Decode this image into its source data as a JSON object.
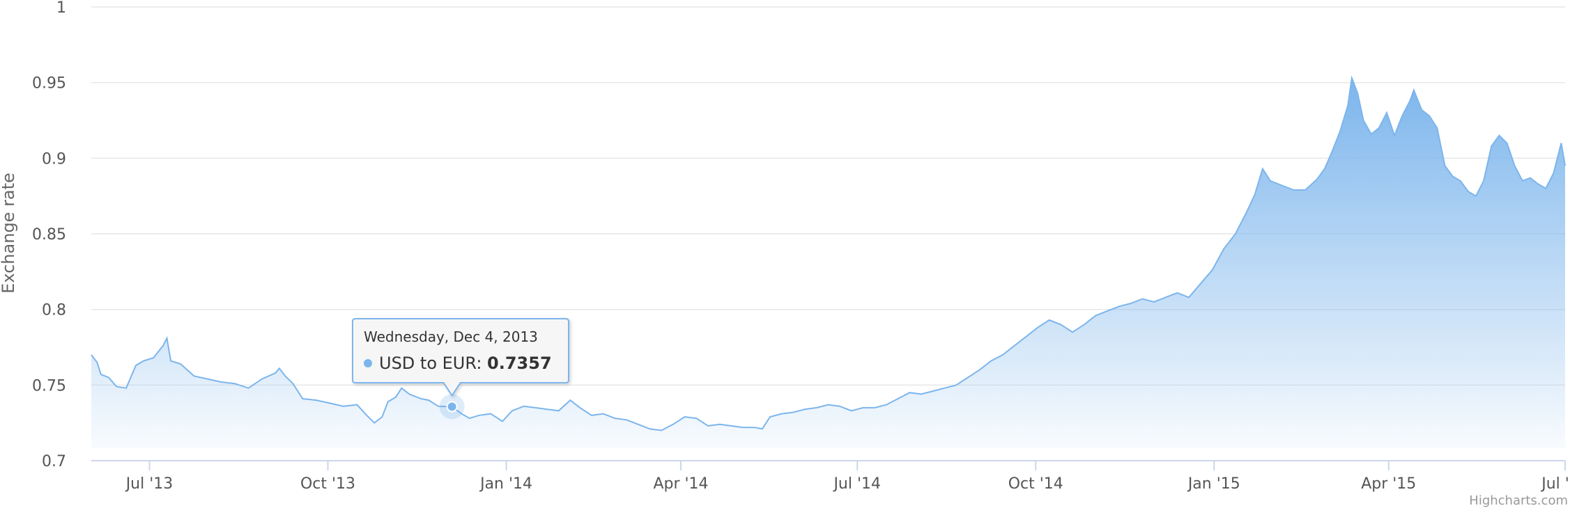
{
  "chart_data": {
    "type": "area",
    "title": "",
    "ylabel": "Exchange rate",
    "xlabel": "",
    "ylim": [
      0.7,
      1
    ],
    "yticks": [
      "0.7",
      "0.75",
      "0.8",
      "0.85",
      "0.9",
      "0.95",
      "1"
    ],
    "xticks": [
      {
        "date": "2013-07-01",
        "label": "Jul '13"
      },
      {
        "date": "2013-10-01",
        "label": "Oct '13"
      },
      {
        "date": "2014-01-01",
        "label": "Jan '14"
      },
      {
        "date": "2014-04-01",
        "label": "Apr '14"
      },
      {
        "date": "2014-07-01",
        "label": "Jul '14"
      },
      {
        "date": "2014-10-01",
        "label": "Oct '14"
      },
      {
        "date": "2015-01-01",
        "label": "Jan '15"
      },
      {
        "date": "2015-04-01",
        "label": "Apr '15"
      },
      {
        "date": "2015-07-01",
        "label": "Jul '15"
      }
    ],
    "grid": true,
    "legend": "none",
    "series": [
      {
        "name": "USD to EUR",
        "color": "#7cb5ec",
        "points": [
          [
            "2013-06-01",
            0.77
          ],
          [
            "2013-06-04",
            0.765
          ],
          [
            "2013-06-06",
            0.757
          ],
          [
            "2013-06-10",
            0.755
          ],
          [
            "2013-06-14",
            0.749
          ],
          [
            "2013-06-19",
            0.748
          ],
          [
            "2013-06-24",
            0.763
          ],
          [
            "2013-06-28",
            0.766
          ],
          [
            "2013-07-03",
            0.768
          ],
          [
            "2013-07-08",
            0.776
          ],
          [
            "2013-07-10",
            0.781
          ],
          [
            "2013-07-12",
            0.766
          ],
          [
            "2013-07-17",
            0.764
          ],
          [
            "2013-07-24",
            0.756
          ],
          [
            "2013-07-31",
            0.754
          ],
          [
            "2013-08-07",
            0.752
          ],
          [
            "2013-08-14",
            0.751
          ],
          [
            "2013-08-21",
            0.748
          ],
          [
            "2013-08-28",
            0.754
          ],
          [
            "2013-09-04",
            0.758
          ],
          [
            "2013-09-06",
            0.761
          ],
          [
            "2013-09-09",
            0.756
          ],
          [
            "2013-09-13",
            0.751
          ],
          [
            "2013-09-18",
            0.741
          ],
          [
            "2013-09-25",
            0.74
          ],
          [
            "2013-10-02",
            0.738
          ],
          [
            "2013-10-09",
            0.736
          ],
          [
            "2013-10-16",
            0.737
          ],
          [
            "2013-10-21",
            0.73
          ],
          [
            "2013-10-25",
            0.725
          ],
          [
            "2013-10-29",
            0.729
          ],
          [
            "2013-11-01",
            0.739
          ],
          [
            "2013-11-05",
            0.742
          ],
          [
            "2013-11-08",
            0.748
          ],
          [
            "2013-11-12",
            0.744
          ],
          [
            "2013-11-18",
            0.741
          ],
          [
            "2013-11-22",
            0.74
          ],
          [
            "2013-11-27",
            0.736
          ],
          [
            "2013-12-04",
            0.7357
          ],
          [
            "2013-12-09",
            0.731
          ],
          [
            "2013-12-13",
            0.728
          ],
          [
            "2013-12-18",
            0.73
          ],
          [
            "2013-12-24",
            0.731
          ],
          [
            "2013-12-30",
            0.726
          ],
          [
            "2014-01-04",
            0.733
          ],
          [
            "2014-01-10",
            0.736
          ],
          [
            "2014-01-16",
            0.735
          ],
          [
            "2014-01-22",
            0.734
          ],
          [
            "2014-01-28",
            0.733
          ],
          [
            "2014-02-03",
            0.74
          ],
          [
            "2014-02-08",
            0.735
          ],
          [
            "2014-02-14",
            0.73
          ],
          [
            "2014-02-20",
            0.731
          ],
          [
            "2014-02-26",
            0.728
          ],
          [
            "2014-03-04",
            0.727
          ],
          [
            "2014-03-10",
            0.724
          ],
          [
            "2014-03-16",
            0.721
          ],
          [
            "2014-03-22",
            0.72
          ],
          [
            "2014-03-28",
            0.724
          ],
          [
            "2014-04-03",
            0.729
          ],
          [
            "2014-04-09",
            0.728
          ],
          [
            "2014-04-15",
            0.723
          ],
          [
            "2014-04-21",
            0.724
          ],
          [
            "2014-04-27",
            0.723
          ],
          [
            "2014-05-03",
            0.722
          ],
          [
            "2014-05-09",
            0.722
          ],
          [
            "2014-05-13",
            0.721
          ],
          [
            "2014-05-17",
            0.729
          ],
          [
            "2014-05-23",
            0.731
          ],
          [
            "2014-05-29",
            0.732
          ],
          [
            "2014-06-04",
            0.734
          ],
          [
            "2014-06-10",
            0.735
          ],
          [
            "2014-06-16",
            0.737
          ],
          [
            "2014-06-22",
            0.736
          ],
          [
            "2014-06-28",
            0.733
          ],
          [
            "2014-07-04",
            0.735
          ],
          [
            "2014-07-10",
            0.735
          ],
          [
            "2014-07-16",
            0.737
          ],
          [
            "2014-07-22",
            0.741
          ],
          [
            "2014-07-28",
            0.745
          ],
          [
            "2014-08-03",
            0.744
          ],
          [
            "2014-08-09",
            0.746
          ],
          [
            "2014-08-15",
            0.748
          ],
          [
            "2014-08-21",
            0.75
          ],
          [
            "2014-08-27",
            0.755
          ],
          [
            "2014-09-02",
            0.76
          ],
          [
            "2014-09-08",
            0.766
          ],
          [
            "2014-09-14",
            0.77
          ],
          [
            "2014-09-20",
            0.776
          ],
          [
            "2014-09-26",
            0.782
          ],
          [
            "2014-10-02",
            0.788
          ],
          [
            "2014-10-08",
            0.793
          ],
          [
            "2014-10-14",
            0.79
          ],
          [
            "2014-10-20",
            0.785
          ],
          [
            "2014-10-26",
            0.79
          ],
          [
            "2014-11-01",
            0.796
          ],
          [
            "2014-11-07",
            0.799
          ],
          [
            "2014-11-13",
            0.802
          ],
          [
            "2014-11-19",
            0.804
          ],
          [
            "2014-11-25",
            0.807
          ],
          [
            "2014-12-01",
            0.805
          ],
          [
            "2014-12-07",
            0.808
          ],
          [
            "2014-12-13",
            0.811
          ],
          [
            "2014-12-19",
            0.808
          ],
          [
            "2014-12-25",
            0.817
          ],
          [
            "2014-12-31",
            0.826
          ],
          [
            "2015-01-06",
            0.84
          ],
          [
            "2015-01-12",
            0.85
          ],
          [
            "2015-01-18",
            0.865
          ],
          [
            "2015-01-22",
            0.876
          ],
          [
            "2015-01-26",
            0.893
          ],
          [
            "2015-01-30",
            0.885
          ],
          [
            "2015-02-05",
            0.882
          ],
          [
            "2015-02-11",
            0.879
          ],
          [
            "2015-02-17",
            0.879
          ],
          [
            "2015-02-23",
            0.886
          ],
          [
            "2015-02-27",
            0.893
          ],
          [
            "2015-03-03",
            0.905
          ],
          [
            "2015-03-07",
            0.918
          ],
          [
            "2015-03-11",
            0.935
          ],
          [
            "2015-03-13",
            0.953
          ],
          [
            "2015-03-16",
            0.943
          ],
          [
            "2015-03-19",
            0.925
          ],
          [
            "2015-03-23",
            0.916
          ],
          [
            "2015-03-27",
            0.92
          ],
          [
            "2015-03-31",
            0.93
          ],
          [
            "2015-04-04",
            0.915
          ],
          [
            "2015-04-08",
            0.928
          ],
          [
            "2015-04-12",
            0.938
          ],
          [
            "2015-04-14",
            0.945
          ],
          [
            "2015-04-18",
            0.932
          ],
          [
            "2015-04-22",
            0.928
          ],
          [
            "2015-04-26",
            0.92
          ],
          [
            "2015-04-30",
            0.895
          ],
          [
            "2015-05-04",
            0.888
          ],
          [
            "2015-05-08",
            0.885
          ],
          [
            "2015-05-12",
            0.878
          ],
          [
            "2015-05-16",
            0.875
          ],
          [
            "2015-05-20",
            0.885
          ],
          [
            "2015-05-24",
            0.908
          ],
          [
            "2015-05-28",
            0.915
          ],
          [
            "2015-06-01",
            0.91
          ],
          [
            "2015-06-05",
            0.895
          ],
          [
            "2015-06-09",
            0.885
          ],
          [
            "2015-06-13",
            0.887
          ],
          [
            "2015-06-17",
            0.883
          ],
          [
            "2015-06-21",
            0.88
          ],
          [
            "2015-06-25",
            0.89
          ],
          [
            "2015-06-29",
            0.91
          ],
          [
            "2015-07-01",
            0.895
          ]
        ]
      }
    ],
    "tooltip": {
      "date_label": "Wednesday, Dec 4, 2013",
      "series_name": "USD to EUR",
      "value": "0.7357",
      "x": "2013-12-04",
      "y": 0.7357
    },
    "credits": "Highcharts.com"
  }
}
